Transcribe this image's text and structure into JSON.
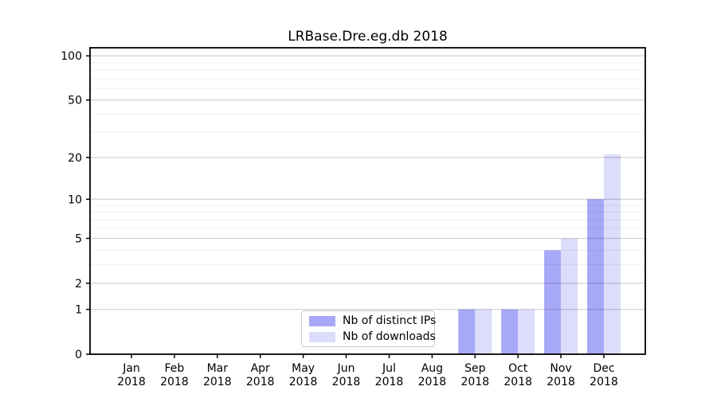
{
  "title": "LRBase.Dre.eg.db 2018",
  "colors": {
    "bar_distinct_ips": "#a8a8f8",
    "bar_downloads": "#dcdcfb",
    "grid_major": "rgba(0,0,0,0.16)",
    "grid_minor": "rgba(0,0,0,0.055)",
    "axis": "#000000",
    "legend_border": "#cccccc",
    "background": "#ffffff"
  },
  "legend": {
    "items": [
      {
        "label": "Nb of distinct IPs",
        "color_key": "bar_distinct_ips"
      },
      {
        "label": "Nb of downloads",
        "color_key": "bar_downloads"
      }
    ]
  },
  "chart_data": {
    "type": "bar",
    "title": "LRBase.Dre.eg.db 2018",
    "y_scale": "log1p",
    "ylim": [
      0,
      113
    ],
    "grid": true,
    "legend_position": "lower center-left inside plot",
    "categories": [
      {
        "month": "Jan",
        "year": "2018"
      },
      {
        "month": "Feb",
        "year": "2018"
      },
      {
        "month": "Mar",
        "year": "2018"
      },
      {
        "month": "Apr",
        "year": "2018"
      },
      {
        "month": "May",
        "year": "2018"
      },
      {
        "month": "Jun",
        "year": "2018"
      },
      {
        "month": "Jul",
        "year": "2018"
      },
      {
        "month": "Aug",
        "year": "2018"
      },
      {
        "month": "Sep",
        "year": "2018"
      },
      {
        "month": "Oct",
        "year": "2018"
      },
      {
        "month": "Nov",
        "year": "2018"
      },
      {
        "month": "Dec",
        "year": "2018"
      }
    ],
    "series": [
      {
        "name": "Nb of distinct IPs",
        "color": "#a8a8f8",
        "values": [
          0,
          0,
          0,
          0,
          0,
          0,
          0,
          0,
          1,
          1,
          4,
          10
        ]
      },
      {
        "name": "Nb of downloads",
        "color": "#dcdcfb",
        "values": [
          0,
          0,
          0,
          0,
          0,
          0,
          0,
          0,
          1,
          1,
          5,
          21
        ]
      }
    ],
    "y_ticks_major": [
      0,
      1,
      2,
      5,
      10,
      20,
      50,
      100
    ],
    "y_ticks_minor": [
      3,
      4,
      6,
      7,
      8,
      9,
      30,
      40,
      60,
      70,
      80,
      90
    ]
  }
}
